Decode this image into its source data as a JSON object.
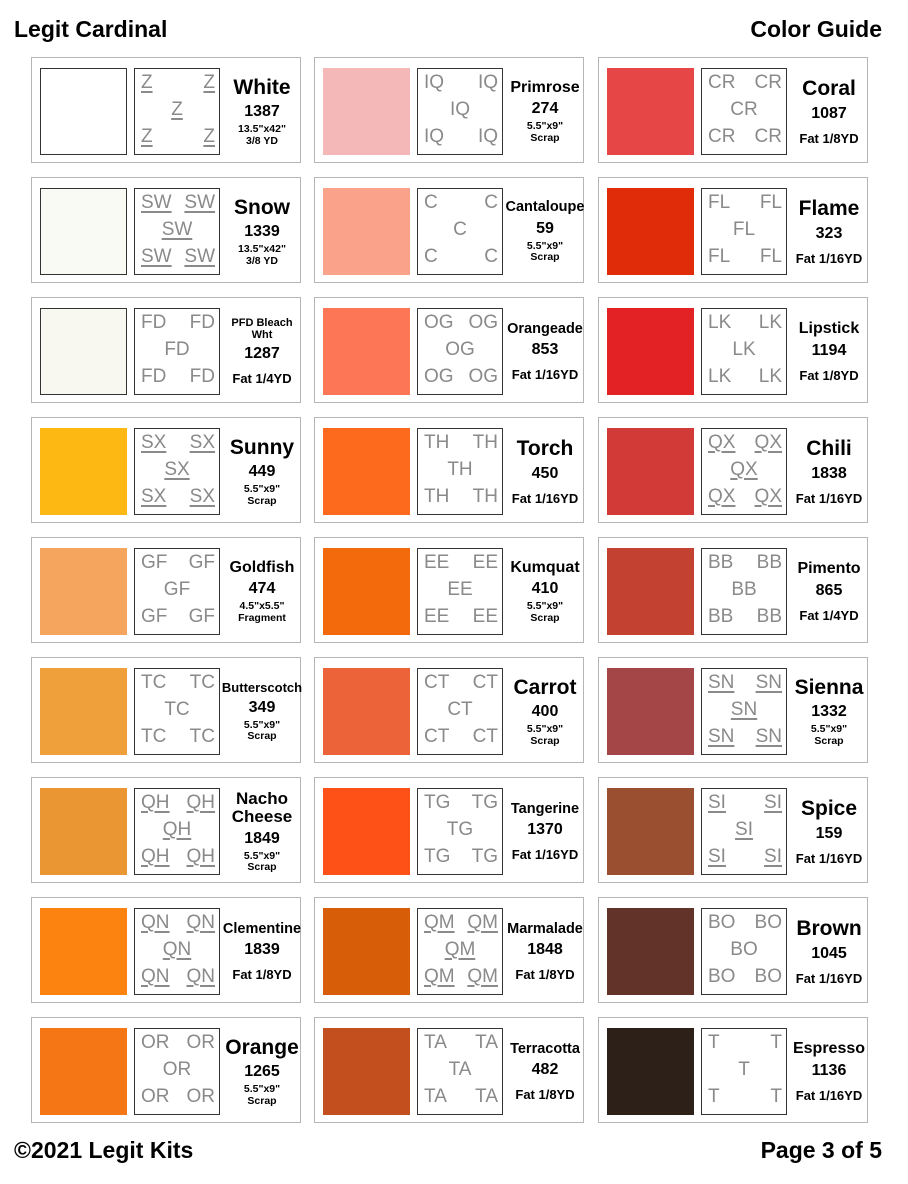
{
  "header": {
    "title": "Legit Cardinal",
    "right": "Color Guide"
  },
  "footer": {
    "copyright": "©2021 Legit Kits",
    "page": "Page 3 of 5"
  },
  "columns": [
    [
      {
        "name": "White",
        "code": "Z",
        "underline": true,
        "number": "1387",
        "detail": [
          "13.5\"x42\"",
          "3/8 YD"
        ],
        "color": "#ffffff"
      },
      {
        "name": "Snow",
        "code": "SW",
        "underline": true,
        "number": "1339",
        "detail": [
          "13.5\"x42\"",
          "3/8 YD"
        ],
        "color": "#fafaf5"
      },
      {
        "name": "PFD Bleach Wht",
        "code": "FD",
        "underline": false,
        "number": "1287",
        "detail": [
          "Fat 1/4YD"
        ],
        "color": "#f8f8f0"
      },
      {
        "name": "Sunny",
        "code": "SX",
        "underline": true,
        "number": "449",
        "detail": [
          "5.5\"x9\"",
          "Scrap"
        ],
        "color": "#fdb813"
      },
      {
        "name": "Goldfish",
        "code": "GF",
        "underline": false,
        "number": "474",
        "detail": [
          "4.5\"x5.5\"",
          "Fragment"
        ],
        "color": "#f6a55e"
      },
      {
        "name": "Butterscotch",
        "code": "TC",
        "underline": false,
        "number": "349",
        "detail": [
          "5.5\"x9\"",
          "Scrap"
        ],
        "color": "#f0a03a"
      },
      {
        "name": "Nacho Cheese",
        "code": "QH",
        "underline": true,
        "number": "1849",
        "detail": [
          "5.5\"x9\"",
          "Scrap"
        ],
        "color": "#ea9632"
      },
      {
        "name": "Clementine",
        "code": "QN",
        "underline": true,
        "number": "1839",
        "detail": [
          "Fat 1/8YD"
        ],
        "color": "#fd8311"
      },
      {
        "name": "Orange",
        "code": "OR",
        "underline": false,
        "number": "1265",
        "detail": [
          "5.5\"x9\"",
          "Scrap"
        ],
        "color": "#f57614"
      }
    ],
    [
      {
        "name": "Primrose",
        "code": "IQ",
        "underline": false,
        "number": "274",
        "detail": [
          "5.5\"x9\"",
          "Scrap"
        ],
        "color": "#f5b8b8"
      },
      {
        "name": "Cantaloupe",
        "code": "C",
        "underline": false,
        "number": "59",
        "detail": [
          "5.5\"x9\"",
          "Scrap"
        ],
        "color": "#fba38a"
      },
      {
        "name": "Orangeade",
        "code": "OG",
        "underline": false,
        "number": "853",
        "detail": [
          "Fat 1/16YD"
        ],
        "color": "#fd7756"
      },
      {
        "name": "Torch",
        "code": "TH",
        "underline": false,
        "number": "450",
        "detail": [
          "Fat 1/16YD"
        ],
        "color": "#fd6a1e"
      },
      {
        "name": "Kumquat",
        "code": "EE",
        "underline": false,
        "number": "410",
        "detail": [
          "5.5\"x9\"",
          "Scrap"
        ],
        "color": "#f26a0c"
      },
      {
        "name": "Carrot",
        "code": "CT",
        "underline": false,
        "number": "400",
        "detail": [
          "5.5\"x9\"",
          "Scrap"
        ],
        "color": "#ec6239"
      },
      {
        "name": "Tangerine",
        "code": "TG",
        "underline": false,
        "number": "1370",
        "detail": [
          "Fat 1/16YD"
        ],
        "color": "#fe5118"
      },
      {
        "name": "Marmalade",
        "code": "QM",
        "underline": true,
        "number": "1848",
        "detail": [
          "Fat 1/8YD"
        ],
        "color": "#d85d09"
      },
      {
        "name": "Terracotta",
        "code": "TA",
        "underline": false,
        "number": "482",
        "detail": [
          "Fat 1/8YD"
        ],
        "color": "#c24f1d"
      }
    ],
    [
      {
        "name": "Coral",
        "code": "CR",
        "underline": false,
        "number": "1087",
        "detail": [
          "Fat 1/8YD"
        ],
        "color": "#e74647"
      },
      {
        "name": "Flame",
        "code": "FL",
        "underline": false,
        "number": "323",
        "detail": [
          "Fat 1/16YD"
        ],
        "color": "#e12c0a"
      },
      {
        "name": "Lipstick",
        "code": "LK",
        "underline": false,
        "number": "1194",
        "detail": [
          "Fat 1/8YD"
        ],
        "color": "#e32226"
      },
      {
        "name": "Chili",
        "code": "QX",
        "underline": true,
        "number": "1838",
        "detail": [
          "Fat 1/16YD"
        ],
        "color": "#d23a38"
      },
      {
        "name": "Pimento",
        "code": "BB",
        "underline": false,
        "number": "865",
        "detail": [
          "Fat 1/4YD"
        ],
        "color": "#c34130"
      },
      {
        "name": "Sienna",
        "code": "SN",
        "underline": true,
        "number": "1332",
        "detail": [
          "5.5\"x9\"",
          "Scrap"
        ],
        "color": "#a44648"
      },
      {
        "name": "Spice",
        "code": "SI",
        "underline": true,
        "number": "159",
        "detail": [
          "Fat 1/16YD"
        ],
        "color": "#9b4f31"
      },
      {
        "name": "Brown",
        "code": "BO",
        "underline": false,
        "number": "1045",
        "detail": [
          "Fat 1/16YD"
        ],
        "color": "#623329"
      },
      {
        "name": "Espresso",
        "code": "T",
        "underline": false,
        "number": "1136",
        "detail": [
          "Fat 1/16YD"
        ],
        "color": "#2d2019"
      }
    ]
  ]
}
